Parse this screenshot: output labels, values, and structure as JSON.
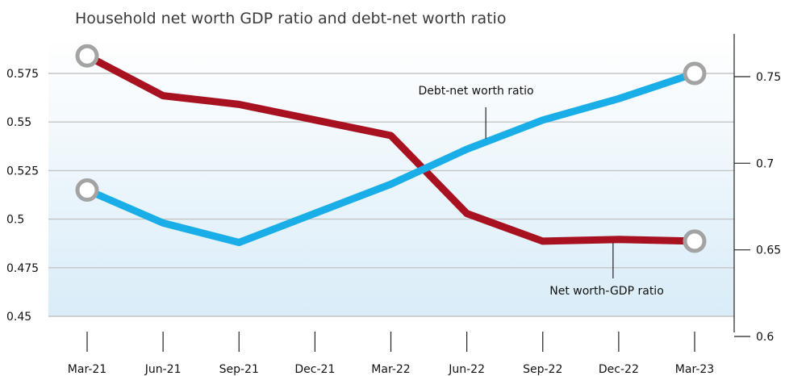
{
  "chart_data": {
    "type": "line",
    "title": "Household net worth GDP ratio and debt-net worth ratio",
    "categories": [
      "Mar-21",
      "Jun-21",
      "Sep-21",
      "Dec-21",
      "Mar-22",
      "Jun-22",
      "Sep-22",
      "Dec-22",
      "Mar-23"
    ],
    "axes": {
      "left": {
        "ylim": [
          0.45,
          0.575
        ],
        "ticks": [
          "0.45",
          "0.475",
          "0.5",
          "0.525",
          "0.55",
          "0.575"
        ]
      },
      "right": {
        "ylim": [
          0.6,
          0.75
        ],
        "ticks": [
          "0.6",
          "0.65",
          "0.7",
          "0.75"
        ]
      }
    },
    "series": [
      {
        "name": "Debt-net worth ratio",
        "axis": "left",
        "color": "#1aaee8",
        "values": [
          0.515,
          0.498,
          0.488,
          0.503,
          0.518,
          0.536,
          0.551,
          0.562,
          0.575
        ]
      },
      {
        "name": "Net worth-GDP ratio",
        "axis": "right",
        "color": "#a8111f",
        "values": [
          0.762,
          0.739,
          0.734,
          0.725,
          0.716,
          0.671,
          0.655,
          0.656,
          0.655
        ]
      }
    ],
    "grid": true,
    "background_gradient": [
      "#ffffff",
      "#d9ecf8"
    ],
    "endpoint_marker_color": "#a3a3a3"
  }
}
